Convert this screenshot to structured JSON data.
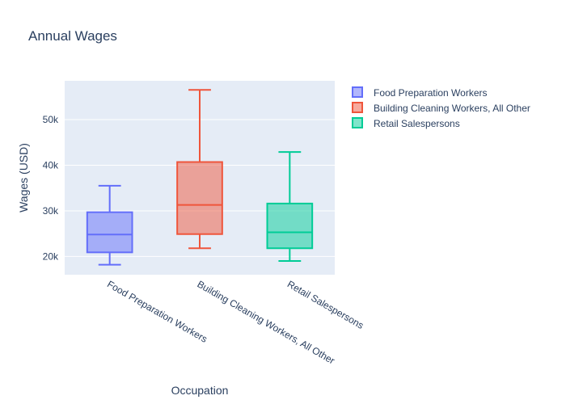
{
  "chart_data": {
    "type": "box",
    "title": "Annual Wages",
    "xlabel": "Occupation",
    "ylabel": "Wages (USD)",
    "ylim": [
      16000,
      58500
    ],
    "yticks": [
      20000,
      30000,
      40000,
      50000
    ],
    "ytick_labels": [
      "20k",
      "30k",
      "40k",
      "50k"
    ],
    "categories": [
      "Food Preparation Workers",
      "Building Cleaning Workers, All Other",
      "Retail Salespersons"
    ],
    "grid": true,
    "legend_position": "top-right",
    "series": [
      {
        "name": "Food Preparation Workers",
        "min": 18200,
        "q1": 20900,
        "median": 24800,
        "q3": 29700,
        "max": 35500,
        "color": "#636efa",
        "fill": "rgba(99,110,250,0.5)"
      },
      {
        "name": "Building Cleaning Workers, All Other",
        "min": 21800,
        "q1": 24900,
        "median": 31300,
        "q3": 40700,
        "max": 56500,
        "color": "#ef553b",
        "fill": "rgba(239,85,59,0.5)"
      },
      {
        "name": "Retail Salespersons",
        "min": 19000,
        "q1": 21800,
        "median": 25300,
        "q3": 31600,
        "max": 42900,
        "color": "#00cc96",
        "fill": "rgba(0,204,150,0.5)"
      }
    ]
  }
}
